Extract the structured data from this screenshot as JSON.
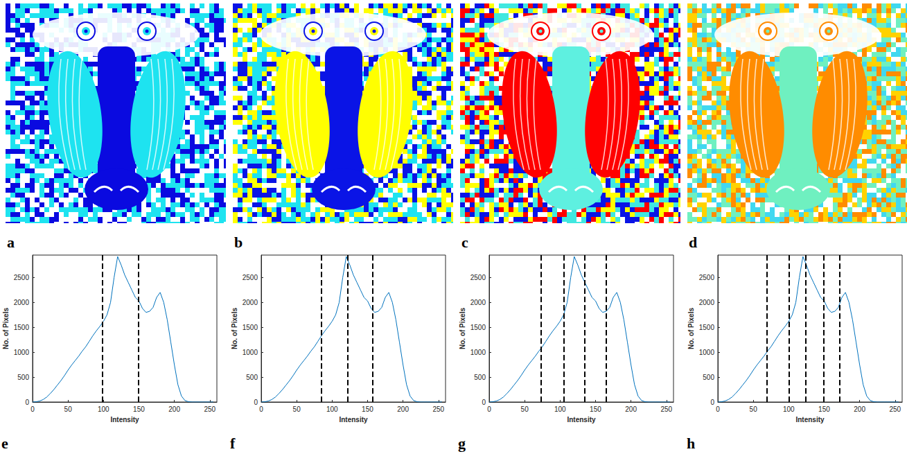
{
  "images": [
    {
      "label": "a",
      "colors": [
        "#1ee3f0",
        "#0a0ae0",
        "#0a0ae0",
        "#1ee3f0",
        "#ffffff"
      ]
    },
    {
      "label": "b",
      "colors": [
        "#ffff00",
        "#0a14e6",
        "#0a14e6",
        "#1ee3f0",
        "#ffff00",
        "#ffffff"
      ]
    },
    {
      "label": "c",
      "colors": [
        "#ff0000",
        "#5ef0e0",
        "#ff0000",
        "#ffff00",
        "#40e8e0",
        "#0a14e6",
        "#ffffff"
      ]
    },
    {
      "label": "d",
      "colors": [
        "#ff8c00",
        "#6ff0c0",
        "#ff8c00",
        "#ffd200",
        "#6ff0c0",
        "#40d8f0",
        "#ffffff"
      ]
    }
  ],
  "chart_data": [
    {
      "type": "line",
      "label": "e",
      "x_label": "Intensity",
      "y_label": "No. of Pixels",
      "color": "#0072bd",
      "x": [
        0,
        5,
        10,
        15,
        20,
        25,
        30,
        35,
        40,
        45,
        50,
        55,
        60,
        65,
        70,
        75,
        80,
        85,
        90,
        95,
        100,
        105,
        110,
        115,
        120,
        125,
        130,
        135,
        140,
        145,
        150,
        155,
        160,
        165,
        170,
        175,
        180,
        185,
        190,
        195,
        200,
        205,
        210,
        215,
        220,
        225,
        230,
        235,
        240,
        245,
        250,
        255
      ],
      "values": [
        0,
        5,
        20,
        50,
        100,
        170,
        250,
        340,
        430,
        530,
        640,
        740,
        830,
        920,
        1020,
        1110,
        1220,
        1330,
        1430,
        1520,
        1620,
        1750,
        2000,
        2500,
        2920,
        2750,
        2550,
        2400,
        2250,
        2100,
        2030,
        1880,
        1800,
        1820,
        1900,
        2100,
        2200,
        2000,
        1650,
        1200,
        750,
        350,
        120,
        30,
        5,
        0,
        0,
        0,
        0,
        0,
        0,
        0
      ],
      "xlim": [
        0,
        260
      ],
      "xticks": [
        0,
        50,
        100,
        150,
        200,
        250
      ],
      "ylim": [
        0,
        2950
      ],
      "yticks": [
        0,
        500,
        1000,
        1500,
        2000,
        2500
      ],
      "thresholds": [
        98,
        149
      ]
    },
    {
      "type": "line",
      "label": "f",
      "x_label": "Intensity",
      "y_label": "No. of Pixels",
      "color": "#0072bd",
      "x": [
        0,
        5,
        10,
        15,
        20,
        25,
        30,
        35,
        40,
        45,
        50,
        55,
        60,
        65,
        70,
        75,
        80,
        85,
        90,
        95,
        100,
        105,
        110,
        115,
        120,
        125,
        130,
        135,
        140,
        145,
        150,
        155,
        160,
        165,
        170,
        175,
        180,
        185,
        190,
        195,
        200,
        205,
        210,
        215,
        220,
        225,
        230,
        235,
        240,
        245,
        250,
        255
      ],
      "values": [
        0,
        5,
        20,
        50,
        100,
        170,
        250,
        340,
        430,
        530,
        640,
        740,
        830,
        920,
        1020,
        1110,
        1220,
        1330,
        1430,
        1520,
        1620,
        1750,
        2000,
        2500,
        2920,
        2750,
        2550,
        2400,
        2250,
        2100,
        2030,
        1880,
        1800,
        1820,
        1900,
        2100,
        2200,
        2000,
        1650,
        1200,
        750,
        350,
        120,
        30,
        5,
        0,
        0,
        0,
        0,
        0,
        0,
        0
      ],
      "xlim": [
        0,
        260
      ],
      "xticks": [
        0,
        50,
        100,
        150,
        200,
        250
      ],
      "ylim": [
        0,
        2950
      ],
      "yticks": [
        0,
        500,
        1000,
        1500,
        2000,
        2500
      ],
      "thresholds": [
        85,
        122,
        157
      ]
    },
    {
      "type": "line",
      "label": "g",
      "x_label": "Intensity",
      "y_label": "No. of Pixels",
      "color": "#0072bd",
      "x": [
        0,
        5,
        10,
        15,
        20,
        25,
        30,
        35,
        40,
        45,
        50,
        55,
        60,
        65,
        70,
        75,
        80,
        85,
        90,
        95,
        100,
        105,
        110,
        115,
        120,
        125,
        130,
        135,
        140,
        145,
        150,
        155,
        160,
        165,
        170,
        175,
        180,
        185,
        190,
        195,
        200,
        205,
        210,
        215,
        220,
        225,
        230,
        235,
        240,
        245,
        250,
        255
      ],
      "values": [
        0,
        5,
        20,
        50,
        100,
        170,
        250,
        340,
        430,
        530,
        640,
        740,
        830,
        920,
        1020,
        1110,
        1220,
        1330,
        1430,
        1520,
        1620,
        1750,
        2000,
        2500,
        2920,
        2750,
        2550,
        2400,
        2250,
        2100,
        2030,
        1880,
        1800,
        1820,
        1900,
        2100,
        2200,
        2000,
        1650,
        1200,
        750,
        350,
        120,
        30,
        5,
        0,
        0,
        0,
        0,
        0,
        0,
        0
      ],
      "xlim": [
        0,
        260
      ],
      "xticks": [
        0,
        50,
        100,
        150,
        200,
        250
      ],
      "ylim": [
        0,
        2950
      ],
      "yticks": [
        0,
        500,
        1000,
        1500,
        2000,
        2500
      ],
      "thresholds": [
        73,
        105,
        135,
        165
      ]
    },
    {
      "type": "line",
      "label": "h",
      "x_label": "Intensity",
      "y_label": "No. of Pixels",
      "color": "#0072bd",
      "x": [
        0,
        5,
        10,
        15,
        20,
        25,
        30,
        35,
        40,
        45,
        50,
        55,
        60,
        65,
        70,
        75,
        80,
        85,
        90,
        95,
        100,
        105,
        110,
        115,
        120,
        125,
        130,
        135,
        140,
        145,
        150,
        155,
        160,
        165,
        170,
        175,
        180,
        185,
        190,
        195,
        200,
        205,
        210,
        215,
        220,
        225,
        230,
        235,
        240,
        245,
        250,
        255
      ],
      "values": [
        0,
        5,
        20,
        50,
        100,
        170,
        250,
        340,
        430,
        530,
        640,
        740,
        830,
        920,
        1020,
        1110,
        1220,
        1330,
        1430,
        1520,
        1620,
        1750,
        2000,
        2500,
        2920,
        2750,
        2550,
        2400,
        2250,
        2100,
        2030,
        1880,
        1800,
        1820,
        1900,
        2100,
        2200,
        2000,
        1650,
        1200,
        750,
        350,
        120,
        30,
        5,
        0,
        0,
        0,
        0,
        0,
        0,
        0
      ],
      "xlim": [
        0,
        260
      ],
      "xticks": [
        0,
        50,
        100,
        150,
        200,
        250
      ],
      "ylim": [
        0,
        2950
      ],
      "yticks": [
        0,
        500,
        1000,
        1500,
        2000,
        2500
      ],
      "thresholds": [
        69,
        100,
        124,
        149,
        172
      ]
    }
  ]
}
